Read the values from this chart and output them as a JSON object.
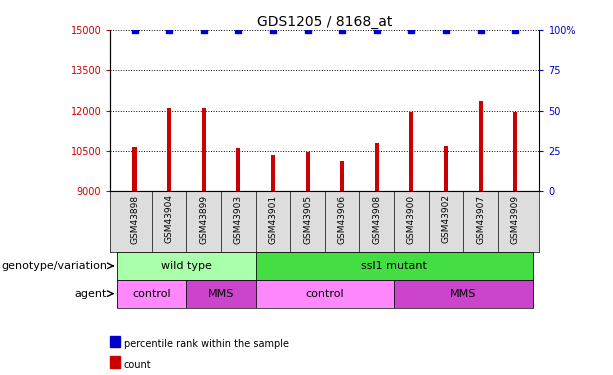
{
  "title": "GDS1205 / 8168_at",
  "samples": [
    "GSM43898",
    "GSM43904",
    "GSM43899",
    "GSM43903",
    "GSM43901",
    "GSM43905",
    "GSM43906",
    "GSM43908",
    "GSM43900",
    "GSM43902",
    "GSM43907",
    "GSM43909"
  ],
  "counts": [
    10650,
    12100,
    12100,
    10600,
    10350,
    10450,
    10150,
    10800,
    11950,
    10700,
    12350,
    11950
  ],
  "percentile_ranks": [
    100,
    100,
    100,
    100,
    100,
    100,
    100,
    100,
    100,
    100,
    100,
    100
  ],
  "ylim_left": [
    9000,
    15000
  ],
  "ylim_right": [
    0,
    100
  ],
  "yticks_left": [
    9000,
    10500,
    12000,
    13500,
    15000
  ],
  "yticks_right": [
    0,
    25,
    50,
    75,
    100
  ],
  "bar_color": "#cc0000",
  "percentile_color": "#0000cc",
  "background_color": "#ffffff",
  "genotype_groups": [
    {
      "label": "wild type",
      "start": 0,
      "end": 4,
      "color": "#aaffaa"
    },
    {
      "label": "ssl1 mutant",
      "start": 4,
      "end": 12,
      "color": "#44dd44"
    }
  ],
  "agent_groups": [
    {
      "label": "control",
      "start": 0,
      "end": 2,
      "color": "#ff88ff"
    },
    {
      "label": "MMS",
      "start": 2,
      "end": 4,
      "color": "#cc44cc"
    },
    {
      "label": "control",
      "start": 4,
      "end": 8,
      "color": "#ff88ff"
    },
    {
      "label": "MMS",
      "start": 8,
      "end": 12,
      "color": "#cc44cc"
    }
  ],
  "legend_items": [
    {
      "label": "count",
      "color": "#cc0000"
    },
    {
      "label": "percentile rank within the sample",
      "color": "#0000cc"
    }
  ],
  "row_labels": [
    "genotype/variation",
    "agent"
  ],
  "bar_width": 0.12,
  "title_fontsize": 10,
  "tick_fontsize": 7,
  "label_fontsize": 8,
  "annot_fontsize": 8
}
